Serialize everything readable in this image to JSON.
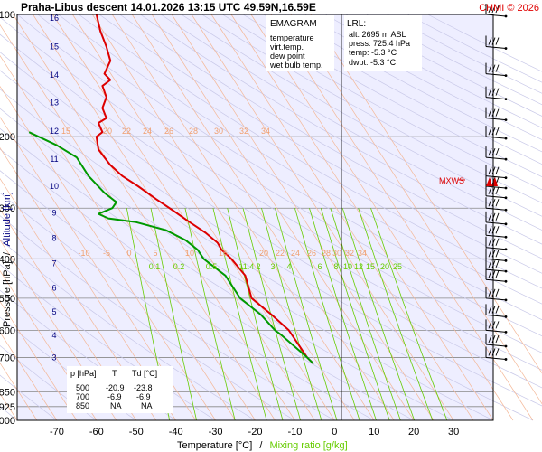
{
  "header": {
    "title": "Praha-Libus  descent   14.01.2026 13:15 UTC  49.59N,16.59E",
    "copyright": "CHMI © 2026"
  },
  "colors": {
    "background": "#eeeeff",
    "temperature": "#dd0000",
    "dew_point": "#009900",
    "isotherm": "#f4b898",
    "dry_adiabat": "#c8c8e8",
    "mixing_ratio": "#66cc00",
    "altitude": "#000080",
    "lrl_alt": "#0000cc",
    "grid": "#888888"
  },
  "legend": {
    "title": "EMAGRAM",
    "items": [
      {
        "label": "temperature",
        "color": "#dd0000"
      },
      {
        "label": "virt.temp.",
        "color": "#dd0000"
      },
      {
        "label": "dew point",
        "color": "#009900"
      },
      {
        "label": "wet bulb temp.",
        "color": "#0066cc"
      }
    ]
  },
  "lrl_box": {
    "title": "LRL:",
    "lines": [
      {
        "label": "alt: 2695 m ASL",
        "color": "#0000cc"
      },
      {
        "label": "press: 725.4 hPa",
        "color": "#000000"
      },
      {
        "label": "temp: -5.3 °C",
        "color": "#dd0000"
      },
      {
        "label": "dwpt: -5.3 °C",
        "color": "#009900"
      }
    ]
  },
  "level_table": {
    "headers": [
      "p [hPa]",
      "T",
      "Td [°C]"
    ],
    "rows": [
      [
        "500",
        "-20.9",
        "-23.8"
      ],
      [
        "700",
        "-6.9",
        "-6.9"
      ],
      [
        "850",
        "NA",
        "NA"
      ]
    ]
  },
  "mxws_label": "MXWS",
  "chart_data": {
    "type": "line",
    "title": "Praha-Libus  descent   14.01.2026 13:15 UTC  49.59N,16.59E",
    "xlabel": "Temperature [°C]",
    "xlabel_sep": "/",
    "xlabel2": "Mixing ratio [g/kg]",
    "ylabel": "Pressure [hPa]",
    "ylabel_sep": "/",
    "ylabel2": "Altitude [km]",
    "y_scale": "log",
    "xlim": [
      -80,
      40
    ],
    "ylim": [
      1000,
      100
    ],
    "x_ticks": [
      -70,
      -60,
      -50,
      -40,
      -30,
      -20,
      -10,
      0,
      10,
      20,
      30
    ],
    "y_ticks": [
      100,
      200,
      300,
      400,
      500,
      600,
      700,
      850,
      925,
      1000
    ],
    "altitude_ticks_km": [
      {
        "km": 16,
        "p": 102
      },
      {
        "km": 15,
        "p": 120
      },
      {
        "km": 14,
        "p": 141
      },
      {
        "km": 13,
        "p": 165
      },
      {
        "km": 12,
        "p": 194
      },
      {
        "km": 11,
        "p": 227
      },
      {
        "km": 10,
        "p": 265
      },
      {
        "km": 9,
        "p": 308
      },
      {
        "km": 8,
        "p": 356
      },
      {
        "km": 7,
        "p": 411
      },
      {
        "km": 6,
        "p": 472
      },
      {
        "km": 5,
        "p": 540
      },
      {
        "km": 4,
        "p": 617
      },
      {
        "km": 3,
        "p": 701
      }
    ],
    "isotherm_labels_upper": [
      "15",
      "20",
      "22",
      "24",
      "26",
      "28",
      "30",
      "32",
      "34"
    ],
    "isotherm_labels_lower": [
      "-10",
      "-5",
      "0",
      "5",
      "10",
      "15",
      "20",
      "22",
      "24",
      "26",
      "28",
      "30",
      "32",
      "34"
    ],
    "mixing_ratio_labels": [
      "0.1",
      "0.2",
      "0.5",
      "1",
      "1.4",
      "2",
      "3",
      "4",
      "6",
      "8",
      "10",
      "12",
      "15",
      "20",
      "25"
    ],
    "series": [
      {
        "name": "temperature",
        "color": "#dd0000",
        "points": [
          [
            -60.0,
            100
          ],
          [
            -59.0,
            110
          ],
          [
            -57.5,
            120
          ],
          [
            -56.5,
            130
          ],
          [
            -58.0,
            140
          ],
          [
            -56.5,
            145
          ],
          [
            -58.5,
            150
          ],
          [
            -57.5,
            160
          ],
          [
            -58.5,
            170
          ],
          [
            -57.5,
            180
          ],
          [
            -59.5,
            185
          ],
          [
            -58.5,
            195
          ],
          [
            -60.0,
            200
          ],
          [
            -59.5,
            215
          ],
          [
            -58.0,
            225
          ],
          [
            -56.5,
            235
          ],
          [
            -53.5,
            250
          ],
          [
            -49.5,
            265
          ],
          [
            -45.0,
            285
          ],
          [
            -40.5,
            305
          ],
          [
            -36.5,
            325
          ],
          [
            -32.5,
            345
          ],
          [
            -29.5,
            365
          ],
          [
            -28.5,
            380
          ],
          [
            -26.0,
            400
          ],
          [
            -22.5,
            440
          ],
          [
            -20.9,
            500
          ],
          [
            -15.8,
            550
          ],
          [
            -11.5,
            600
          ],
          [
            -6.9,
            700
          ],
          [
            -5.3,
            725.4
          ]
        ]
      },
      {
        "name": "dew point",
        "color": "#009900",
        "points": [
          [
            -77.0,
            195
          ],
          [
            -70.0,
            210
          ],
          [
            -65.0,
            225
          ],
          [
            -62.0,
            250
          ],
          [
            -58.0,
            275
          ],
          [
            -55.0,
            290
          ],
          [
            -56.0,
            300
          ],
          [
            -59.5,
            310
          ],
          [
            -57.0,
            318
          ],
          [
            -50.0,
            325
          ],
          [
            -42.5,
            340
          ],
          [
            -37.5,
            360
          ],
          [
            -34.5,
            380
          ],
          [
            -33.0,
            400
          ],
          [
            -27.5,
            440
          ],
          [
            -23.8,
            500
          ],
          [
            -18.5,
            550
          ],
          [
            -15.0,
            600
          ],
          [
            -13.5,
            615
          ],
          [
            -6.9,
            700
          ],
          [
            -5.3,
            725.4
          ]
        ]
      }
    ],
    "mxws_p": 265,
    "wind_barbs_p": [
      100,
      120,
      140,
      160,
      180,
      200,
      225,
      250,
      265,
      280,
      300,
      325,
      350,
      375,
      400,
      425,
      450,
      500,
      550,
      600,
      650,
      700
    ]
  }
}
